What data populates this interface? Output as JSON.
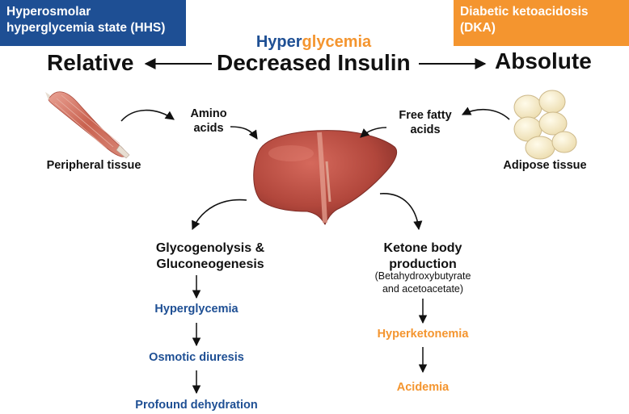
{
  "header": {
    "hhs_box": {
      "line1": "Hyperosmolar",
      "line2": "hyperglycemia state (HHS)"
    },
    "dka_box": {
      "line1": "Diabetic ketoacidosis",
      "line2": "(DKA)"
    },
    "title_part1": "Hyper",
    "title_part2": "glycemia"
  },
  "axis": {
    "left": "Relative",
    "center": "Decreased Insulin",
    "right": "Absolute"
  },
  "inputs": {
    "amino": {
      "line1": "Amino",
      "line2": "acids"
    },
    "fatty": {
      "line1": "Free fatty",
      "line2": "acids"
    },
    "peripheral": "Peripheral tissue",
    "adipose": "Adipose tissue"
  },
  "left_path": {
    "process_line1": "Glycogenolysis &",
    "process_line2": "Gluconeogenesis",
    "step1": "Hyperglycemia",
    "step2": "Osmotic diuresis",
    "step3": "Profound dehydration"
  },
  "right_path": {
    "process_line1": "Ketone body",
    "process_line2": "production",
    "detail_line1": "(Betahydroxybutyrate",
    "detail_line2": "and acetoacetate)",
    "step1": "Hyperketonemia",
    "step2": "Acidemia"
  },
  "colors": {
    "blue": "#1e4f94",
    "orange": "#f4952f",
    "liver": "#b2473c"
  }
}
